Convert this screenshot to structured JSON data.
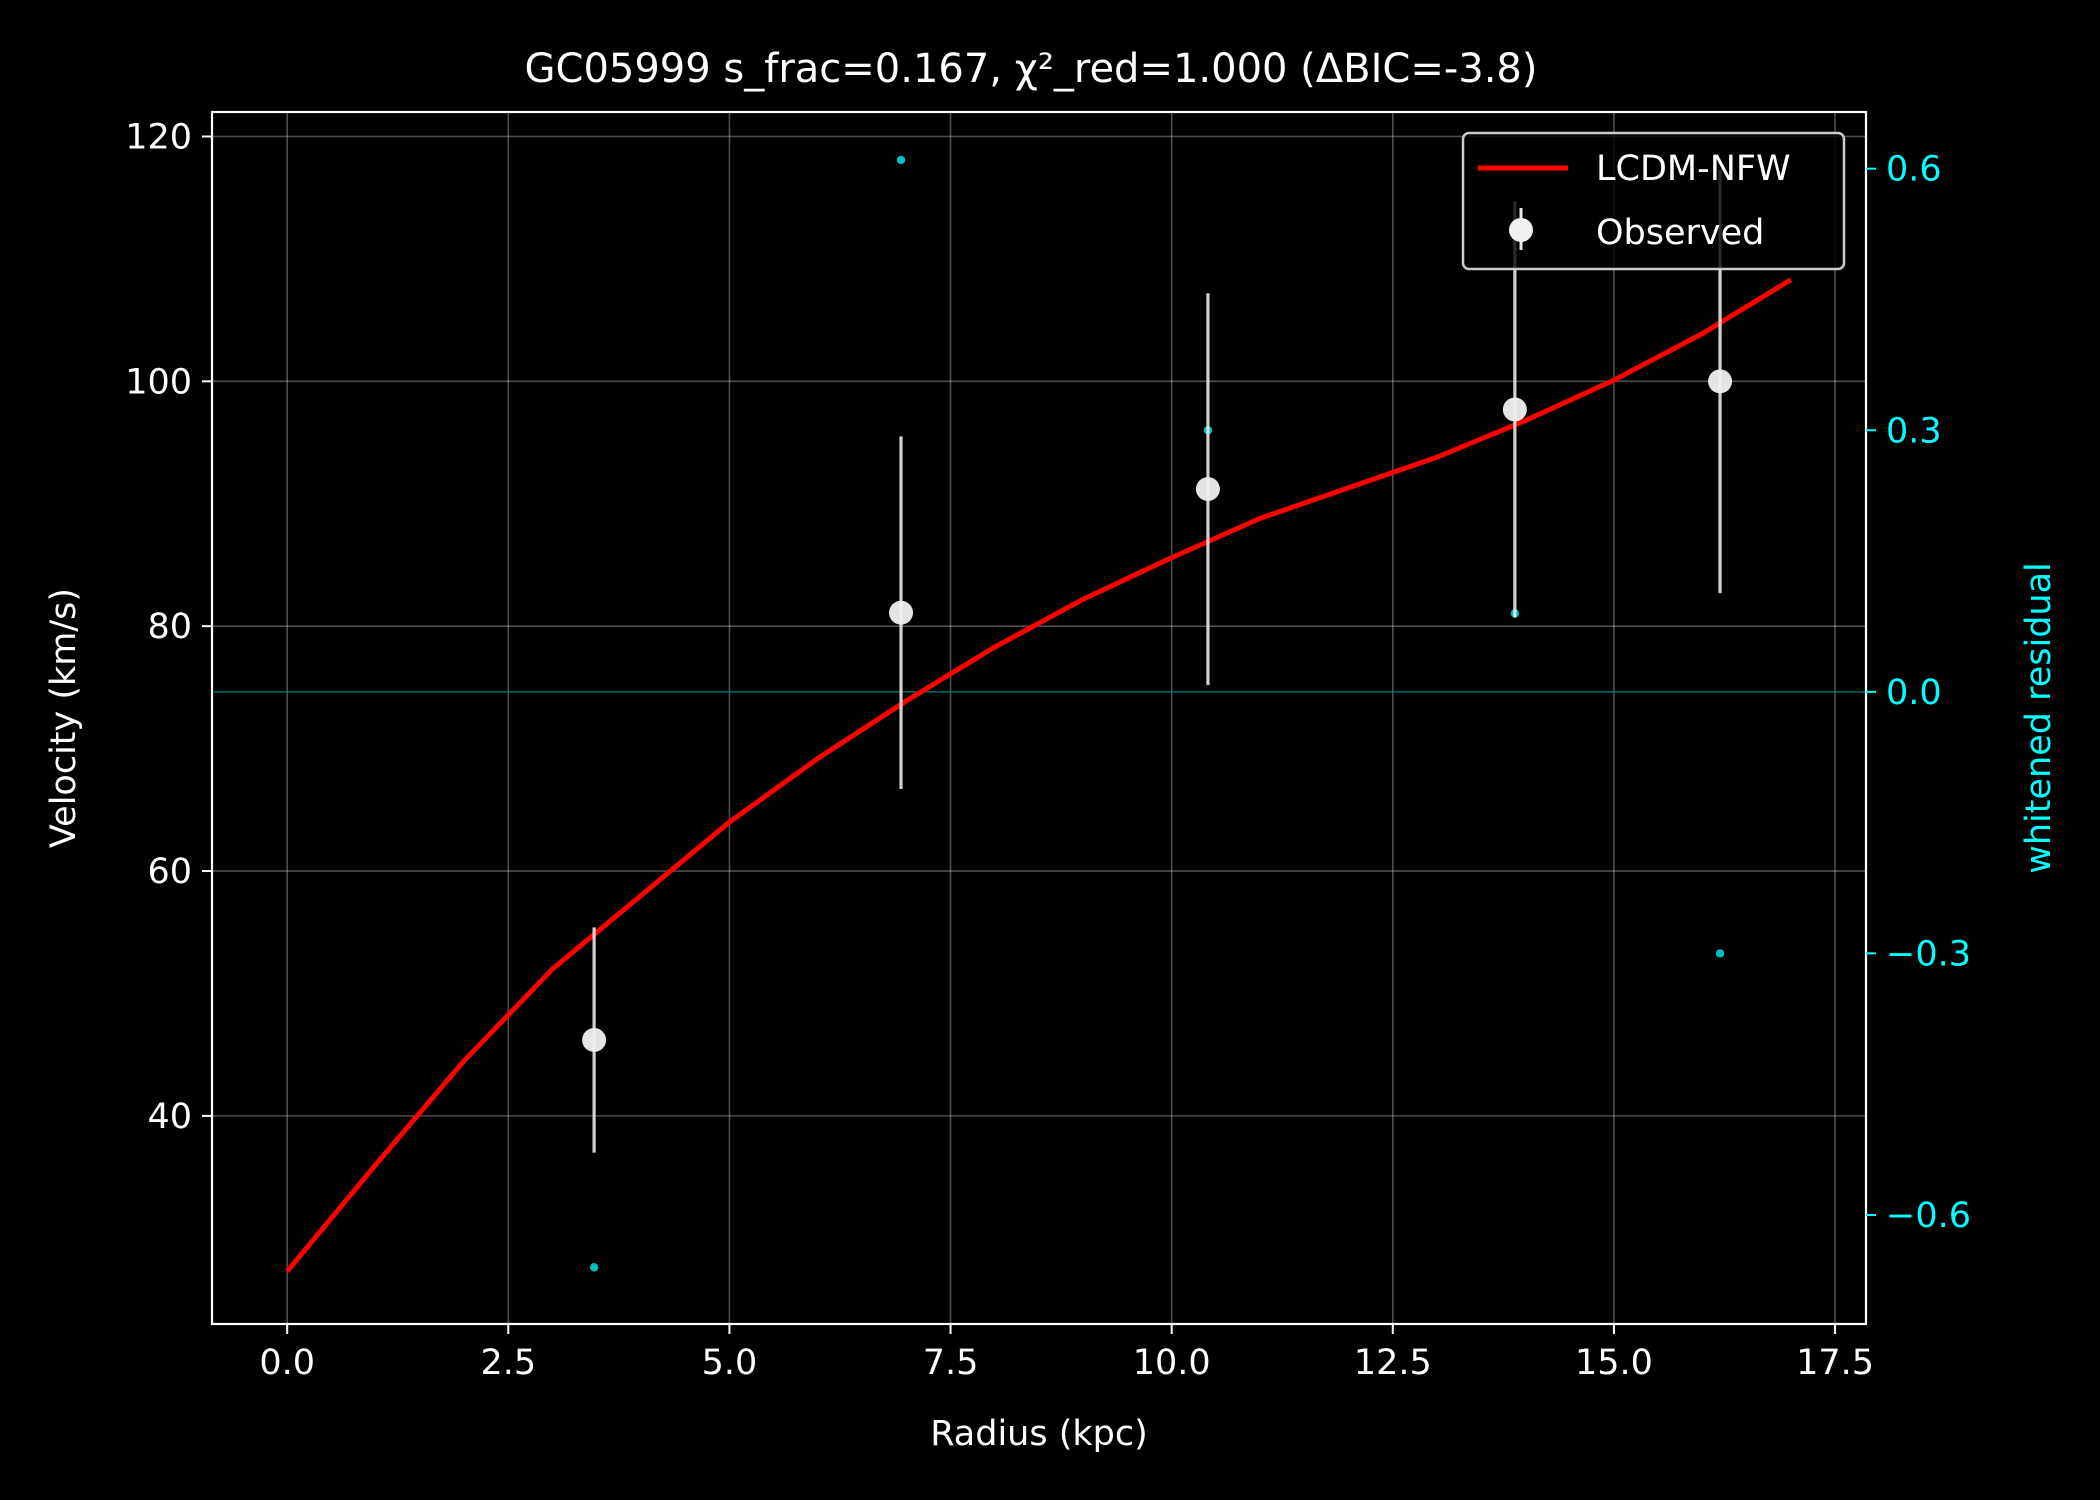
{
  "chart_data": {
    "type": "scatter",
    "title": "GC05999  s_frac=0.167, χ²_red=1.000  (ΔBIC=-3.8)",
    "xlabel": "Radius (kpc)",
    "ylabel": "Velocity (km/s)",
    "y2label": "whitened residual",
    "xlim": [
      -0.85,
      17.85
    ],
    "ylim": [
      23,
      122
    ],
    "y2lim": [
      -0.725,
      0.665
    ],
    "xticks": [
      0.0,
      2.5,
      5.0,
      7.5,
      10.0,
      12.5,
      15.0,
      17.5
    ],
    "xtick_labels": [
      "0.0",
      "2.5",
      "5.0",
      "7.5",
      "10.0",
      "12.5",
      "15.0",
      "17.5"
    ],
    "yticks": [
      40,
      60,
      80,
      100,
      120
    ],
    "ytick_labels": [
      "40",
      "60",
      "80",
      "100",
      "120"
    ],
    "y2ticks": [
      -0.6,
      -0.3,
      0.0,
      0.3,
      0.6
    ],
    "y2tick_labels": [
      "−0.6",
      "−0.3",
      "0.0",
      "0.3",
      "0.6"
    ],
    "grid": true,
    "legend_position": "top-right",
    "legend": [
      {
        "label": "LCDM-NFW",
        "kind": "line",
        "color": "#ff0000"
      },
      {
        "label": "Observed",
        "kind": "errorbar",
        "color": "#e8e8e8"
      }
    ],
    "series": [
      {
        "name": "LCDM-NFW",
        "kind": "line",
        "color": "#ff0000",
        "x": [
          0.0,
          1.0,
          2.0,
          3.0,
          4.0,
          5.0,
          6.0,
          7.0,
          8.0,
          9.0,
          10.0,
          11.0,
          12.0,
          13.0,
          14.0,
          15.0,
          16.0,
          17.0
        ],
        "y": [
          27.3,
          36.0,
          44.5,
          52.0,
          58.0,
          64.0,
          69.2,
          73.9,
          78.3,
          82.2,
          85.6,
          88.8,
          91.3,
          93.8,
          96.8,
          100.1,
          103.9,
          108.3
        ]
      },
      {
        "name": "Observed",
        "kind": "errorbar",
        "color": "#e8e8e8",
        "x": [
          3.47,
          6.94,
          10.41,
          13.88,
          16.2
        ],
        "y": [
          46.2,
          81.1,
          91.2,
          97.7,
          100.0
        ],
        "yerr": [
          9.2,
          14.4,
          16.0,
          17.0,
          17.3
        ]
      },
      {
        "kind": "residual",
        "axis": "right",
        "color": "#00bfbf",
        "x": [
          3.47,
          6.94,
          10.41,
          13.88,
          16.2
        ],
        "y": [
          -0.66,
          0.61,
          0.3,
          0.09,
          -0.3
        ]
      }
    ],
    "reference_line": {
      "axis": "right",
      "y": 0.0,
      "color": "#008b8b"
    }
  },
  "colors": {
    "background": "#000000",
    "axes": "#ffffff",
    "grid": "#ffffff",
    "right_axis": "#00ffff"
  }
}
